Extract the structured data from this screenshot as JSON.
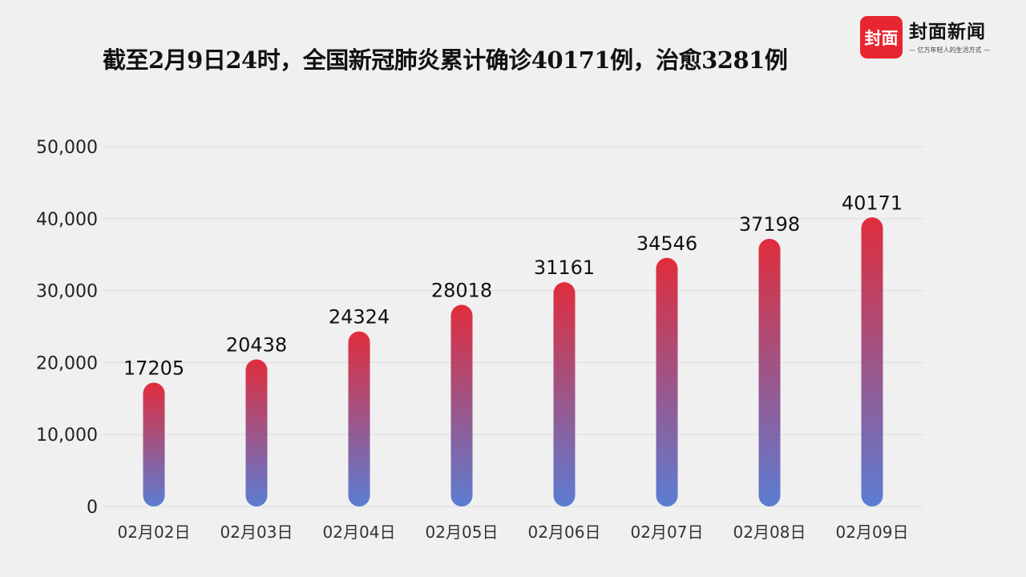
{
  "title": "截至2月9日24时，全国新冠肺炎累计确诊40171例，治愈3281例",
  "logo": {
    "badge": "封面",
    "name": "封面新闻",
    "slogan": "— 亿万年轻人的生活方式 —"
  },
  "colors": {
    "bar_top": "#e02d3c",
    "bar_bottom": "#5b7dd3",
    "grid": "#dcdcdc",
    "background": "#f0f0f1"
  },
  "chart_data": {
    "type": "bar",
    "title": "截至2月9日24时，全国新冠肺炎累计确诊40171例，治愈3281例",
    "categories": [
      "02月02日",
      "02月03日",
      "02月04日",
      "02月05日",
      "02月06日",
      "02月07日",
      "02月08日",
      "02月09日"
    ],
    "values": [
      17205,
      20438,
      24324,
      28018,
      31161,
      34546,
      37198,
      40171
    ],
    "data_labels": [
      "17205",
      "20438",
      "24324",
      "28018",
      "31161",
      "34546",
      "37198",
      "40171"
    ],
    "yticks": [
      0,
      10000,
      20000,
      30000,
      40000,
      50000
    ],
    "ytick_labels": [
      "0",
      "10,000",
      "20,000",
      "30,000",
      "40,000",
      "50,000"
    ],
    "ylim": [
      0,
      50000
    ],
    "xlabel": "",
    "ylabel": "",
    "grid": true,
    "legend": "none"
  }
}
